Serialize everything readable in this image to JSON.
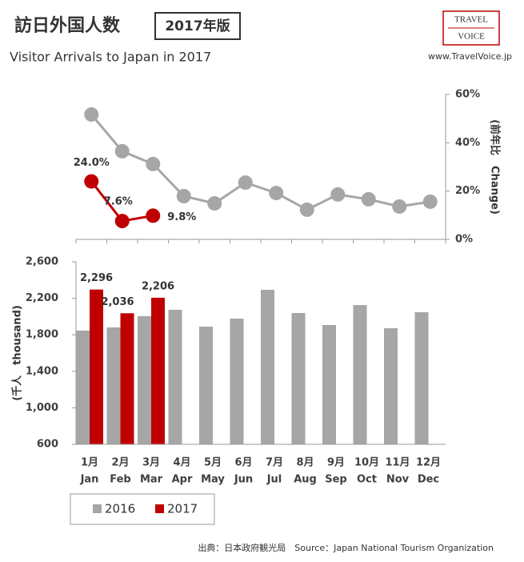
{
  "header": {
    "title": "訪日外国人数",
    "badge": "2017年版",
    "subtitle": "Visitor Arrivals to Japan in 2017",
    "logo_top": "TRAVEL",
    "logo_bottom": "VOICE",
    "url": "www.TravelVoice.jp"
  },
  "source": "出典：日本政府観光局　Source：Japan National Tourism Organization",
  "chart_data": [
    {
      "type": "line",
      "y_label": "(前年比　Change)",
      "axis_side": "right",
      "ylim": [
        0,
        60
      ],
      "yticks": [
        {
          "value": 0,
          "label": "0%"
        },
        {
          "value": 20,
          "label": "20%"
        },
        {
          "value": 40,
          "label": "40%"
        },
        {
          "value": 60,
          "label": "60%"
        }
      ],
      "series": [
        {
          "name": "2016",
          "color": "#a6a6a6",
          "values": [
            51.7,
            36.5,
            31.2,
            17.9,
            14.9,
            23.5,
            19.2,
            12.3,
            18.6,
            16.6,
            13.6,
            15.6
          ]
        },
        {
          "name": "2017",
          "color": "#c00000",
          "values": [
            24.0,
            7.6,
            9.8,
            null,
            null,
            null,
            null,
            null,
            null,
            null,
            null,
            null
          ],
          "value_labels": [
            "24.0%",
            "7.6%",
            "9.8%",
            null,
            null,
            null,
            null,
            null,
            null,
            null,
            null,
            null
          ]
        }
      ]
    },
    {
      "type": "bar",
      "y_label": "(千人　thousand)",
      "categories": [
        "1月",
        "2月",
        "3月",
        "4月",
        "5月",
        "6月",
        "7月",
        "8月",
        "9月",
        "10月",
        "11月",
        "12月"
      ],
      "categories_en": [
        "Jan",
        "Feb",
        "Mar",
        "Apr",
        "May",
        "Jun",
        "Jul",
        "Aug",
        "Sep",
        "Oct",
        "Nov",
        "Dec"
      ],
      "ylim": [
        600,
        2600
      ],
      "yticks": [
        600,
        {
          "value": 1000,
          "label": "1,000"
        },
        {
          "value": 1400,
          "label": "1,400"
        },
        {
          "value": 1800,
          "label": "1,800"
        },
        {
          "value": 2200,
          "label": "2,200"
        },
        {
          "value": 2600,
          "label": "2,600"
        }
      ],
      "legend": "bottom-left",
      "series": [
        {
          "name": "2016",
          "color": "#a6a6a6",
          "values": [
            1846,
            1881,
            2004,
            2074,
            1889,
            1977,
            2293,
            2039,
            1907,
            2126,
            1872,
            2047
          ]
        },
        {
          "name": "2017",
          "color": "#c00000",
          "values": [
            2296,
            2036,
            2206,
            null,
            null,
            null,
            null,
            null,
            null,
            null,
            null,
            null
          ],
          "value_labels": [
            "2,296",
            "2,036",
            "2,206",
            null,
            null,
            null,
            null,
            null,
            null,
            null,
            null,
            null
          ]
        }
      ]
    }
  ]
}
